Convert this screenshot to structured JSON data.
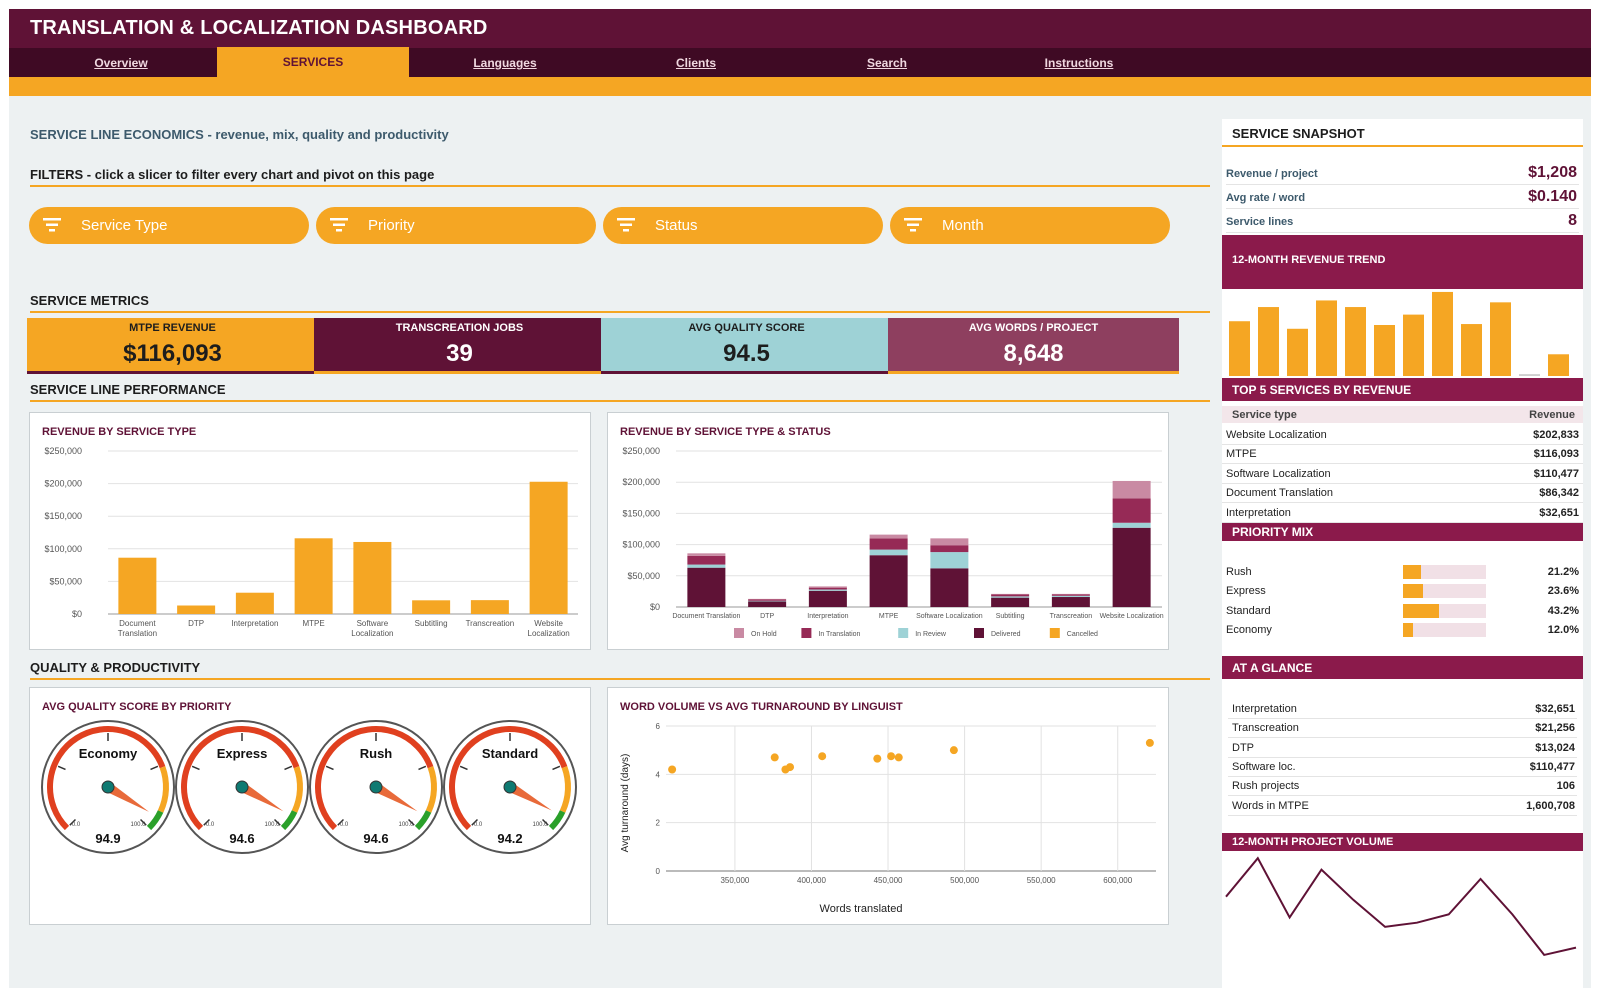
{
  "header": {
    "title": "TRANSLATION & LOCALIZATION DASHBOARD",
    "tabs": [
      "Overview",
      "SERVICES",
      "Languages",
      "Clients",
      "Search",
      "Instructions"
    ],
    "active_tab": "SERVICES"
  },
  "page": {
    "subtitle": "SERVICE LINE ECONOMICS - revenue, mix, quality and productivity",
    "filters_heading": "FILTERS - click a slicer to filter every chart and pivot on this page",
    "slicers": [
      "Service Type",
      "Priority",
      "Status",
      "Month"
    ],
    "metrics_heading": "SERVICE METRICS",
    "performance_heading": "SERVICE LINE PERFORMANCE",
    "quality_heading": "QUALITY & PRODUCTIVITY"
  },
  "kpis": [
    {
      "title": "MTPE REVENUE",
      "value": "$116,093",
      "bg": "#f5a623",
      "fg": "#1d1d1d",
      "bar": "#5f1236"
    },
    {
      "title": "TRANSCREATION JOBS",
      "value": "39",
      "bg": "#5f1236",
      "fg": "#ffffff",
      "bar": "#f5a623"
    },
    {
      "title": "AVG QUALITY SCORE",
      "value": "94.5",
      "bg": "#9ed2d6",
      "fg": "#1d1d1d",
      "bar": "#5f1236"
    },
    {
      "title": "AVG WORDS / PROJECT",
      "value": "8,648",
      "bg": "#8e3f5f",
      "fg": "#ffffff",
      "bar": "#f5a623"
    }
  ],
  "colors": {
    "brand": "#5f1236",
    "accent": "#f5a623",
    "on_hold": "#c98aa3",
    "in_translation": "#962a56",
    "in_review": "#9ed2d6",
    "delivered": "#5f1236",
    "cancelled": "#f5a623"
  },
  "chart_data": [
    {
      "type": "bar",
      "title": "REVENUE BY SERVICE TYPE",
      "categories": [
        "Document Translation",
        "DTP",
        "Interpretation",
        "MTPE",
        "Software Localization",
        "Subtitling",
        "Transcreation",
        "Website Localization"
      ],
      "values": [
        86342,
        13024,
        32651,
        116093,
        110477,
        21000,
        21256,
        202833
      ],
      "ylim": [
        0,
        250000
      ],
      "yticks": [
        "$250,000",
        "$200,000",
        "$150,000",
        "$100,000",
        "$50,000",
        "$0"
      ],
      "ytick_values": [
        250000,
        200000,
        150000,
        100000,
        50000,
        0
      ]
    },
    {
      "type": "bar",
      "stacked": true,
      "title": "REVENUE BY SERVICE TYPE & STATUS",
      "categories": [
        "Document Translation",
        "DTP",
        "Interpretation",
        "MTPE",
        "Software Localization",
        "Subtitling",
        "Transcreation",
        "Website Localization"
      ],
      "series": [
        {
          "name": "Delivered",
          "values": [
            63000,
            9000,
            26000,
            83000,
            62000,
            15000,
            16000,
            127000
          ]
        },
        {
          "name": "In Review",
          "values": [
            5000,
            1000,
            2000,
            9000,
            26000,
            2000,
            2000,
            8000
          ]
        },
        {
          "name": "In Translation",
          "values": [
            14000,
            2000,
            3000,
            18000,
            11000,
            3000,
            2000,
            39000
          ]
        },
        {
          "name": "On Hold",
          "values": [
            4000,
            1000,
            2000,
            6000,
            11000,
            1000,
            1000,
            28000
          ]
        },
        {
          "name": "Cancelled",
          "values": [
            0,
            0,
            0,
            0,
            0,
            0,
            0,
            0
          ]
        }
      ],
      "legend": [
        "On Hold",
        "In Translation",
        "In Review",
        "Delivered",
        "Cancelled"
      ],
      "ylim": [
        0,
        250000
      ],
      "yticks": [
        "$250,000",
        "$200,000",
        "$150,000",
        "$100,000",
        "$50,000",
        "$0"
      ],
      "ytick_values": [
        250000,
        200000,
        150000,
        100000,
        50000,
        0
      ]
    },
    {
      "type": "gauge",
      "title": "AVG QUALITY SCORE BY PRIORITY",
      "min_label": "0.0",
      "max_label": "100.0",
      "gauges": [
        {
          "name": "Economy",
          "value": 94.9,
          "display": "94.9"
        },
        {
          "name": "Express",
          "value": 94.6,
          "display": "94.6"
        },
        {
          "name": "Rush",
          "value": 94.6,
          "display": "94.6"
        },
        {
          "name": "Standard",
          "value": 94.2,
          "display": "94.2"
        }
      ]
    },
    {
      "type": "scatter",
      "title": "WORD VOLUME VS AVG TURNAROUND BY LINGUIST",
      "xlabel": "Words translated",
      "ylabel": "Avg turnaround (days)",
      "xlim": [
        305000,
        625000
      ],
      "ylim": [
        0,
        6
      ],
      "xticks": [
        "350,000",
        "400,000",
        "450,000",
        "500,000",
        "550,000",
        "600,000"
      ],
      "xtick_values": [
        350000,
        400000,
        450000,
        500000,
        550000,
        600000
      ],
      "yticks": [
        "6",
        "4",
        "2",
        "0"
      ],
      "ytick_values": [
        6,
        4,
        2,
        0
      ],
      "points": [
        {
          "x": 309000,
          "y": 4.2
        },
        {
          "x": 376000,
          "y": 4.7
        },
        {
          "x": 383000,
          "y": 4.2
        },
        {
          "x": 386000,
          "y": 4.3
        },
        {
          "x": 407000,
          "y": 4.75
        },
        {
          "x": 443000,
          "y": 4.65
        },
        {
          "x": 452000,
          "y": 4.75
        },
        {
          "x": 457000,
          "y": 4.7
        },
        {
          "x": 493000,
          "y": 5.0
        },
        {
          "x": 621000,
          "y": 5.3
        }
      ]
    },
    {
      "type": "bar",
      "title": "12-MONTH REVENUE TREND",
      "values": [
        58,
        73,
        50,
        80,
        73,
        54,
        65,
        89,
        55,
        78,
        2,
        23
      ]
    },
    {
      "type": "line",
      "title": "12-MONTH PROJECT VOLUME",
      "values": [
        58,
        95,
        38,
        84,
        55,
        29,
        33,
        41,
        75,
        41,
        2,
        9
      ]
    }
  ],
  "sidebar": {
    "snapshot_title": "SERVICE SNAPSHOT",
    "snapshot": [
      {
        "label": "Revenue / project",
        "value": "$1,208"
      },
      {
        "label": "Avg rate / word",
        "value": "$0.140"
      },
      {
        "label": "Service lines",
        "value": "8"
      }
    ],
    "trend_title": "12-MONTH REVENUE TREND",
    "top5_title": "TOP 5 SERVICES BY REVENUE",
    "top5_headers": [
      "Service type",
      "Revenue"
    ],
    "top5": [
      {
        "label": "Website Localization",
        "value": "$202,833"
      },
      {
        "label": "MTPE",
        "value": "$116,093"
      },
      {
        "label": "Software Localization",
        "value": "$110,477"
      },
      {
        "label": "Document Translation",
        "value": "$86,342"
      },
      {
        "label": "Interpretation",
        "value": "$32,651"
      }
    ],
    "priority_title": "PRIORITY MIX",
    "priority": [
      {
        "label": "Rush",
        "pct": 21.2,
        "display": "21.2%"
      },
      {
        "label": "Express",
        "pct": 23.6,
        "display": "23.6%"
      },
      {
        "label": "Standard",
        "pct": 43.2,
        "display": "43.2%"
      },
      {
        "label": "Economy",
        "pct": 12.0,
        "display": "12.0%"
      }
    ],
    "glance_title": "AT A GLANCE",
    "glance": [
      {
        "label": "Interpretation",
        "value": "$32,651"
      },
      {
        "label": "Transcreation",
        "value": "$21,256"
      },
      {
        "label": "DTP",
        "value": "$13,024"
      },
      {
        "label": "Software loc.",
        "value": "$110,477"
      },
      {
        "label": "Rush projects",
        "value": "106"
      },
      {
        "label": "Words in MTPE",
        "value": "1,600,708"
      }
    ],
    "volume_title": "12-MONTH PROJECT VOLUME"
  }
}
